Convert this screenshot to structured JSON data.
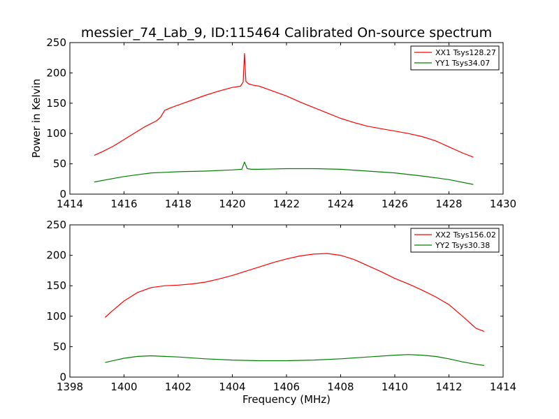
{
  "title": "messier_74_Lab_9, ID:115464 Calibrated On-source spectrum",
  "colors": {
    "red": "#ff0000",
    "green": "#008000",
    "axis": "#000000",
    "background": "#ffffff"
  },
  "chart_data": [
    {
      "type": "line",
      "title": "messier_74_Lab_9, ID:115464 Calibrated On-source spectrum",
      "xlabel": "",
      "ylabel": "Power in Kelvin",
      "xlim": [
        1414,
        1430
      ],
      "ylim": [
        0,
        250
      ],
      "x_ticks": [
        1414,
        1416,
        1418,
        1420,
        1422,
        1424,
        1426,
        1428,
        1430
      ],
      "y_ticks": [
        0,
        50,
        100,
        150,
        200,
        250
      ],
      "grid": false,
      "legend_position": "top-right",
      "series": [
        {
          "name": "XX1 Tsys128.27",
          "color": "#ff0000",
          "points": [
            [
              1414.9,
              64
            ],
            [
              1415.2,
              70
            ],
            [
              1415.6,
              79
            ],
            [
              1416.0,
              90
            ],
            [
              1416.4,
              101
            ],
            [
              1416.8,
              112
            ],
            [
              1417.2,
              121
            ],
            [
              1417.35,
              127
            ],
            [
              1417.5,
              138
            ],
            [
              1417.7,
              142
            ],
            [
              1418.0,
              147
            ],
            [
              1418.5,
              155
            ],
            [
              1419.0,
              163
            ],
            [
              1419.5,
              170
            ],
            [
              1420.0,
              176
            ],
            [
              1420.3,
              178
            ],
            [
              1420.4,
              185
            ],
            [
              1420.45,
              232
            ],
            [
              1420.5,
              186
            ],
            [
              1420.6,
              182
            ],
            [
              1420.75,
              180
            ],
            [
              1421.0,
              178
            ],
            [
              1421.5,
              170
            ],
            [
              1422.0,
              162
            ],
            [
              1422.5,
              152
            ],
            [
              1423.0,
              143
            ],
            [
              1423.5,
              134
            ],
            [
              1424.0,
              125
            ],
            [
              1424.5,
              118
            ],
            [
              1425.0,
              112
            ],
            [
              1425.5,
              108
            ],
            [
              1426.0,
              104
            ],
            [
              1426.5,
              100
            ],
            [
              1427.0,
              95
            ],
            [
              1427.5,
              88
            ],
            [
              1428.0,
              78
            ],
            [
              1428.5,
              68
            ],
            [
              1428.9,
              61
            ]
          ]
        },
        {
          "name": "YY1 Tsys34.07",
          "color": "#008000",
          "points": [
            [
              1414.9,
              20
            ],
            [
              1415.5,
              25
            ],
            [
              1416.0,
              29
            ],
            [
              1416.5,
              32
            ],
            [
              1417.0,
              35
            ],
            [
              1417.5,
              36
            ],
            [
              1418.0,
              37
            ],
            [
              1419.0,
              38
            ],
            [
              1420.0,
              40
            ],
            [
              1420.35,
              41
            ],
            [
              1420.45,
              53
            ],
            [
              1420.55,
              42
            ],
            [
              1420.7,
              41
            ],
            [
              1421.0,
              41
            ],
            [
              1422.0,
              42
            ],
            [
              1423.0,
              42
            ],
            [
              1424.0,
              41
            ],
            [
              1425.0,
              38
            ],
            [
              1426.0,
              35
            ],
            [
              1427.0,
              30
            ],
            [
              1428.0,
              24
            ],
            [
              1428.9,
              16
            ]
          ]
        }
      ]
    },
    {
      "type": "line",
      "title": "",
      "xlabel": "Frequency (MHz)",
      "ylabel": "",
      "xlim": [
        1398,
        1414
      ],
      "ylim": [
        0,
        250
      ],
      "x_ticks": [
        1398,
        1400,
        1402,
        1404,
        1406,
        1408,
        1410,
        1412,
        1414
      ],
      "y_ticks": [
        0,
        50,
        100,
        150,
        200,
        250
      ],
      "grid": false,
      "legend_position": "top-right",
      "series": [
        {
          "name": "XX2 Tsys156.02",
          "color": "#ff0000",
          "points": [
            [
              1399.3,
              98
            ],
            [
              1399.6,
              110
            ],
            [
              1400.0,
              125
            ],
            [
              1400.5,
              139
            ],
            [
              1401.0,
              147
            ],
            [
              1401.5,
              150
            ],
            [
              1402.0,
              151
            ],
            [
              1402.5,
              153
            ],
            [
              1403.0,
              156
            ],
            [
              1403.5,
              161
            ],
            [
              1404.0,
              167
            ],
            [
              1404.5,
              174
            ],
            [
              1405.0,
              181
            ],
            [
              1405.5,
              188
            ],
            [
              1406.0,
              194
            ],
            [
              1406.5,
              199
            ],
            [
              1407.0,
              202
            ],
            [
              1407.5,
              203
            ],
            [
              1408.0,
              200
            ],
            [
              1408.5,
              193
            ],
            [
              1409.0,
              183
            ],
            [
              1409.5,
              173
            ],
            [
              1410.0,
              162
            ],
            [
              1410.5,
              153
            ],
            [
              1411.0,
              143
            ],
            [
              1411.5,
              132
            ],
            [
              1412.0,
              119
            ],
            [
              1412.5,
              100
            ],
            [
              1413.0,
              80
            ],
            [
              1413.3,
              75
            ]
          ]
        },
        {
          "name": "YY2 Tsys30.38",
          "color": "#008000",
          "points": [
            [
              1399.3,
              24
            ],
            [
              1399.7,
              28
            ],
            [
              1400.0,
              31
            ],
            [
              1400.5,
              34
            ],
            [
              1401.0,
              35
            ],
            [
              1401.5,
              34
            ],
            [
              1402.0,
              33
            ],
            [
              1403.0,
              30
            ],
            [
              1404.0,
              28
            ],
            [
              1405.0,
              27
            ],
            [
              1406.0,
              27
            ],
            [
              1407.0,
              28
            ],
            [
              1408.0,
              30
            ],
            [
              1409.0,
              33
            ],
            [
              1410.0,
              36
            ],
            [
              1410.5,
              37
            ],
            [
              1411.0,
              36
            ],
            [
              1411.5,
              34
            ],
            [
              1412.0,
              30
            ],
            [
              1412.5,
              25
            ],
            [
              1413.0,
              21
            ],
            [
              1413.3,
              19
            ]
          ]
        }
      ]
    }
  ]
}
